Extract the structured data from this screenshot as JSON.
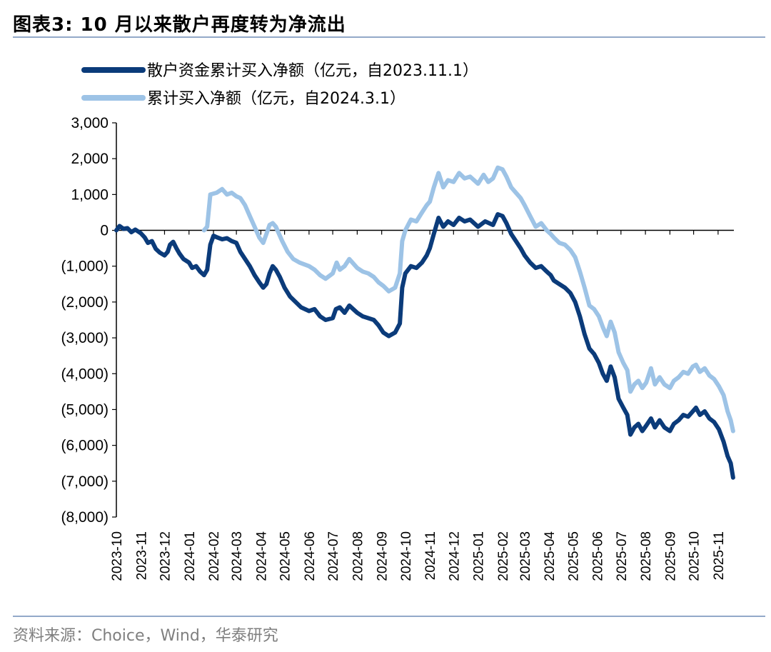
{
  "figure": {
    "title": "图表3:  10 月以来散户再度转为净流出",
    "source": "资料来源：Choice，Wind，华泰研究"
  },
  "colors": {
    "series1": "#0b3b7a",
    "series2": "#9dc3e6",
    "rule": "#93a9c9",
    "axis": "#000000"
  },
  "chart_data": {
    "type": "line",
    "xlabel": "",
    "ylabel": "",
    "ylim": [
      -8000,
      3000
    ],
    "yticks": [
      3000,
      2000,
      1000,
      0,
      -1000,
      -2000,
      -3000,
      -4000,
      -5000,
      -6000,
      -7000,
      -8000
    ],
    "ytick_labels": [
      "3,000",
      "2,000",
      "1,000",
      "0",
      "(1,000)",
      "(2,000)",
      "(3,000)",
      "(4,000)",
      "(5,000)",
      "(6,000)",
      "(7,000)",
      "(8,000)"
    ],
    "x_categories": [
      "2023-10",
      "2023-11",
      "2023-12",
      "2024-01",
      "2024-02",
      "2024-03",
      "2024-04",
      "2024-05",
      "2024-06",
      "2024-07",
      "2024-08",
      "2024-09",
      "2024-10",
      "2024-11",
      "2024-12",
      "2025-01",
      "2025-02",
      "2025-03",
      "2025-04",
      "2025-05",
      "2025-06",
      "2025-07",
      "2025-08",
      "2025-09",
      "2025-10",
      "2025-11"
    ],
    "legend_position": "top-left",
    "grid": false,
    "series": [
      {
        "name": "散户资金累计买入净额（亿元，自2023.11.1）",
        "color": "#0b3b7a",
        "points": [
          [
            "2023-10-01",
            0
          ],
          [
            "2023-10-05",
            120
          ],
          [
            "2023-10-10",
            40
          ],
          [
            "2023-10-15",
            60
          ],
          [
            "2023-10-20",
            -50
          ],
          [
            "2023-10-25",
            20
          ],
          [
            "2023-11-01",
            -80
          ],
          [
            "2023-11-06",
            -200
          ],
          [
            "2023-11-10",
            -350
          ],
          [
            "2023-11-15",
            -300
          ],
          [
            "2023-11-20",
            -520
          ],
          [
            "2023-11-25",
            -620
          ],
          [
            "2023-12-01",
            -700
          ],
          [
            "2023-12-05",
            -600
          ],
          [
            "2023-12-08",
            -400
          ],
          [
            "2023-12-12",
            -320
          ],
          [
            "2023-12-16",
            -500
          ],
          [
            "2023-12-20",
            -650
          ],
          [
            "2023-12-25",
            -800
          ],
          [
            "2024-01-01",
            -900
          ],
          [
            "2024-01-05",
            -1050
          ],
          [
            "2024-01-10",
            -1000
          ],
          [
            "2024-01-15",
            -1150
          ],
          [
            "2024-01-20",
            -1250
          ],
          [
            "2024-01-24",
            -1100
          ],
          [
            "2024-01-28",
            -400
          ],
          [
            "2024-02-01",
            -150
          ],
          [
            "2024-02-06",
            -200
          ],
          [
            "2024-02-12",
            -250
          ],
          [
            "2024-02-18",
            -220
          ],
          [
            "2024-02-24",
            -300
          ],
          [
            "2024-03-01",
            -350
          ],
          [
            "2024-03-06",
            -600
          ],
          [
            "2024-03-12",
            -800
          ],
          [
            "2024-03-18",
            -1000
          ],
          [
            "2024-03-24",
            -1250
          ],
          [
            "2024-03-30",
            -1450
          ],
          [
            "2024-04-04",
            -1600
          ],
          [
            "2024-04-08",
            -1500
          ],
          [
            "2024-04-12",
            -1200
          ],
          [
            "2024-04-16",
            -1000
          ],
          [
            "2024-04-20",
            -1100
          ],
          [
            "2024-04-25",
            -1300
          ],
          [
            "2024-05-01",
            -1600
          ],
          [
            "2024-05-08",
            -1850
          ],
          [
            "2024-05-15",
            -2000
          ],
          [
            "2024-05-22",
            -2150
          ],
          [
            "2024-06-01",
            -2250
          ],
          [
            "2024-06-08",
            -2200
          ],
          [
            "2024-06-15",
            -2400
          ],
          [
            "2024-06-22",
            -2500
          ],
          [
            "2024-07-01",
            -2450
          ],
          [
            "2024-07-05",
            -2200
          ],
          [
            "2024-07-10",
            -2150
          ],
          [
            "2024-07-16",
            -2300
          ],
          [
            "2024-07-22",
            -2100
          ],
          [
            "2024-08-01",
            -2300
          ],
          [
            "2024-08-08",
            -2400
          ],
          [
            "2024-08-15",
            -2450
          ],
          [
            "2024-08-22",
            -2500
          ],
          [
            "2024-08-28",
            -2650
          ],
          [
            "2024-09-03",
            -2850
          ],
          [
            "2024-09-10",
            -2950
          ],
          [
            "2024-09-18",
            -2850
          ],
          [
            "2024-09-24",
            -2600
          ],
          [
            "2024-09-27",
            -1600
          ],
          [
            "2024-10-01",
            -1200
          ],
          [
            "2024-10-08",
            -1000
          ],
          [
            "2024-10-15",
            -1050
          ],
          [
            "2024-10-22",
            -900
          ],
          [
            "2024-10-28",
            -700
          ],
          [
            "2024-11-01",
            -500
          ],
          [
            "2024-11-06",
            -100
          ],
          [
            "2024-11-12",
            350
          ],
          [
            "2024-11-18",
            100
          ],
          [
            "2024-11-24",
            250
          ],
          [
            "2024-12-01",
            150
          ],
          [
            "2024-12-08",
            350
          ],
          [
            "2024-12-15",
            250
          ],
          [
            "2024-12-22",
            300
          ],
          [
            "2025-01-01",
            100
          ],
          [
            "2025-01-10",
            250
          ],
          [
            "2025-01-20",
            150
          ],
          [
            "2025-01-26",
            450
          ],
          [
            "2025-02-01",
            400
          ],
          [
            "2025-02-06",
            200
          ],
          [
            "2025-02-12",
            -100
          ],
          [
            "2025-02-18",
            -300
          ],
          [
            "2025-02-24",
            -500
          ],
          [
            "2025-03-01",
            -700
          ],
          [
            "2025-03-08",
            -900
          ],
          [
            "2025-03-15",
            -1050
          ],
          [
            "2025-03-22",
            -1000
          ],
          [
            "2025-03-29",
            -1150
          ],
          [
            "2025-04-03",
            -1250
          ],
          [
            "2025-04-07",
            -1400
          ],
          [
            "2025-04-14",
            -1500
          ],
          [
            "2025-04-21",
            -1600
          ],
          [
            "2025-04-28",
            -1750
          ],
          [
            "2025-05-04",
            -2000
          ],
          [
            "2025-05-10",
            -2400
          ],
          [
            "2025-05-16",
            -2900
          ],
          [
            "2025-05-22",
            -3300
          ],
          [
            "2025-05-28",
            -3450
          ],
          [
            "2025-06-03",
            -3700
          ],
          [
            "2025-06-08",
            -4000
          ],
          [
            "2025-06-13",
            -4200
          ],
          [
            "2025-06-18",
            -3800
          ],
          [
            "2025-06-23",
            -4100
          ],
          [
            "2025-06-28",
            -4700
          ],
          [
            "2025-07-04",
            -4950
          ],
          [
            "2025-07-09",
            -5150
          ],
          [
            "2025-07-13",
            -5700
          ],
          [
            "2025-07-18",
            -5500
          ],
          [
            "2025-07-23",
            -5400
          ],
          [
            "2025-07-28",
            -5600
          ],
          [
            "2025-08-02",
            -5450
          ],
          [
            "2025-08-08",
            -5250
          ],
          [
            "2025-08-13",
            -5500
          ],
          [
            "2025-08-19",
            -5300
          ],
          [
            "2025-08-25",
            -5500
          ],
          [
            "2025-09-01",
            -5600
          ],
          [
            "2025-09-06",
            -5400
          ],
          [
            "2025-09-12",
            -5300
          ],
          [
            "2025-09-18",
            -5150
          ],
          [
            "2025-09-24",
            -5200
          ],
          [
            "2025-09-30",
            -5050
          ],
          [
            "2025-10-04",
            -4950
          ],
          [
            "2025-10-09",
            -5150
          ],
          [
            "2025-10-15",
            -5050
          ],
          [
            "2025-10-21",
            -5250
          ],
          [
            "2025-10-27",
            -5350
          ],
          [
            "2025-11-02",
            -5550
          ],
          [
            "2025-11-08",
            -5900
          ],
          [
            "2025-11-13",
            -6300
          ],
          [
            "2025-11-17",
            -6500
          ],
          [
            "2025-11-20",
            -6900
          ]
        ]
      },
      {
        "name": "累计买入净额（亿元，自2024.3.1）",
        "color": "#9dc3e6",
        "points": [
          [
            "2024-01-20",
            0
          ],
          [
            "2024-01-24",
            100
          ],
          [
            "2024-01-28",
            1000
          ],
          [
            "2024-02-05",
            1050
          ],
          [
            "2024-02-12",
            1150
          ],
          [
            "2024-02-18",
            1000
          ],
          [
            "2024-02-24",
            1050
          ],
          [
            "2024-03-01",
            950
          ],
          [
            "2024-03-06",
            900
          ],
          [
            "2024-03-12",
            700
          ],
          [
            "2024-03-18",
            400
          ],
          [
            "2024-03-24",
            100
          ],
          [
            "2024-03-30",
            -200
          ],
          [
            "2024-04-04",
            -350
          ],
          [
            "2024-04-08",
            -100
          ],
          [
            "2024-04-12",
            150
          ],
          [
            "2024-04-16",
            200
          ],
          [
            "2024-04-20",
            100
          ],
          [
            "2024-04-28",
            -300
          ],
          [
            "2024-05-05",
            -600
          ],
          [
            "2024-05-12",
            -800
          ],
          [
            "2024-05-20",
            -900
          ],
          [
            "2024-06-01",
            -1000
          ],
          [
            "2024-06-08",
            -1100
          ],
          [
            "2024-06-15",
            -1250
          ],
          [
            "2024-06-22",
            -1350
          ],
          [
            "2024-07-01",
            -1200
          ],
          [
            "2024-07-06",
            -900
          ],
          [
            "2024-07-10",
            -1100
          ],
          [
            "2024-07-16",
            -1000
          ],
          [
            "2024-07-22",
            -800
          ],
          [
            "2024-08-01",
            -1050
          ],
          [
            "2024-08-08",
            -1150
          ],
          [
            "2024-08-15",
            -1200
          ],
          [
            "2024-08-22",
            -1300
          ],
          [
            "2024-08-28",
            -1450
          ],
          [
            "2024-09-03",
            -1550
          ],
          [
            "2024-09-10",
            -1700
          ],
          [
            "2024-09-18",
            -1600
          ],
          [
            "2024-09-24",
            -1200
          ],
          [
            "2024-09-27",
            -300
          ],
          [
            "2024-10-01",
            0
          ],
          [
            "2024-10-08",
            300
          ],
          [
            "2024-10-15",
            250
          ],
          [
            "2024-10-22",
            500
          ],
          [
            "2024-10-28",
            700
          ],
          [
            "2024-11-01",
            800
          ],
          [
            "2024-11-06",
            1200
          ],
          [
            "2024-11-12",
            1600
          ],
          [
            "2024-11-18",
            1200
          ],
          [
            "2024-11-24",
            1400
          ],
          [
            "2024-12-01",
            1350
          ],
          [
            "2024-12-08",
            1600
          ],
          [
            "2024-12-15",
            1450
          ],
          [
            "2024-12-22",
            1500
          ],
          [
            "2025-01-01",
            1300
          ],
          [
            "2025-01-08",
            1550
          ],
          [
            "2025-01-14",
            1350
          ],
          [
            "2025-01-20",
            1450
          ],
          [
            "2025-01-26",
            1750
          ],
          [
            "2025-02-01",
            1700
          ],
          [
            "2025-02-06",
            1500
          ],
          [
            "2025-02-12",
            1200
          ],
          [
            "2025-02-18",
            1050
          ],
          [
            "2025-02-24",
            900
          ],
          [
            "2025-03-01",
            700
          ],
          [
            "2025-03-08",
            400
          ],
          [
            "2025-03-15",
            100
          ],
          [
            "2025-03-22",
            200
          ],
          [
            "2025-03-29",
            0
          ],
          [
            "2025-04-03",
            -100
          ],
          [
            "2025-04-07",
            -200
          ],
          [
            "2025-04-14",
            -350
          ],
          [
            "2025-04-21",
            -400
          ],
          [
            "2025-04-28",
            -550
          ],
          [
            "2025-05-04",
            -750
          ],
          [
            "2025-05-10",
            -1150
          ],
          [
            "2025-05-16",
            -1600
          ],
          [
            "2025-05-22",
            -2100
          ],
          [
            "2025-05-28",
            -2200
          ],
          [
            "2025-06-03",
            -2400
          ],
          [
            "2025-06-08",
            -2700
          ],
          [
            "2025-06-13",
            -2950
          ],
          [
            "2025-06-18",
            -2550
          ],
          [
            "2025-06-23",
            -2850
          ],
          [
            "2025-06-28",
            -3400
          ],
          [
            "2025-07-04",
            -3700
          ],
          [
            "2025-07-09",
            -3900
          ],
          [
            "2025-07-13",
            -4500
          ],
          [
            "2025-07-18",
            -4300
          ],
          [
            "2025-07-23",
            -4200
          ],
          [
            "2025-07-28",
            -4400
          ],
          [
            "2025-08-02",
            -4250
          ],
          [
            "2025-08-08",
            -3850
          ],
          [
            "2025-08-13",
            -4300
          ],
          [
            "2025-08-19",
            -4100
          ],
          [
            "2025-08-25",
            -4300
          ],
          [
            "2025-09-01",
            -4400
          ],
          [
            "2025-09-06",
            -4200
          ],
          [
            "2025-09-12",
            -4100
          ],
          [
            "2025-09-18",
            -3950
          ],
          [
            "2025-09-24",
            -4000
          ],
          [
            "2025-09-30",
            -3800
          ],
          [
            "2025-10-04",
            -3750
          ],
          [
            "2025-10-09",
            -3950
          ],
          [
            "2025-10-15",
            -3850
          ],
          [
            "2025-10-21",
            -4050
          ],
          [
            "2025-10-27",
            -4150
          ],
          [
            "2025-11-02",
            -4350
          ],
          [
            "2025-11-08",
            -4600
          ],
          [
            "2025-11-13",
            -5050
          ],
          [
            "2025-11-17",
            -5300
          ],
          [
            "2025-11-20",
            -5600
          ]
        ]
      }
    ]
  }
}
